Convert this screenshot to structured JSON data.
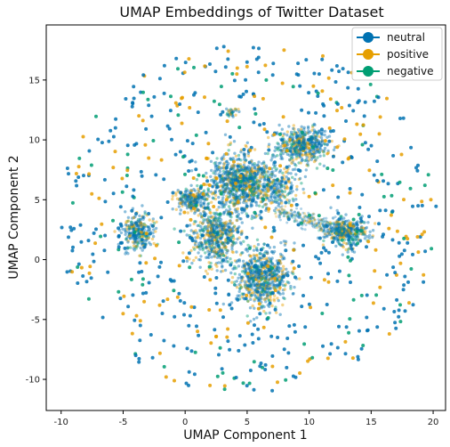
{
  "chart_data": {
    "type": "scatter",
    "title": "UMAP Embeddings of Twitter Dataset",
    "xlabel": "UMAP Component 1",
    "ylabel": "UMAP Component 2",
    "xlim": [
      -11.2,
      21.0
    ],
    "ylim": [
      -12.6,
      19.6
    ],
    "xticks": [
      -10,
      -5,
      0,
      5,
      10,
      15,
      20
    ],
    "yticks": [
      -10,
      -5,
      0,
      5,
      10,
      15
    ],
    "grid": false,
    "legend_position": "top-right",
    "series": [
      {
        "name": "neutral",
        "color": "#0072b2"
      },
      {
        "name": "positive",
        "color": "#e69f00"
      },
      {
        "name": "negative",
        "color": "#009e73"
      }
    ],
    "clusters": [
      {
        "cx": 4.5,
        "cy": 6.5,
        "sx": 1.7,
        "sy": 1.5,
        "weight": 0.16
      },
      {
        "cx": 6.2,
        "cy": -1.5,
        "sx": 1.4,
        "sy": 1.6,
        "weight": 0.13
      },
      {
        "cx": 2.5,
        "cy": 2.0,
        "sx": 1.4,
        "sy": 1.6,
        "weight": 0.11
      },
      {
        "cx": 9.5,
        "cy": 9.5,
        "sx": 1.3,
        "sy": 1.0,
        "weight": 0.09
      },
      {
        "cx": 13.0,
        "cy": 2.3,
        "sx": 1.1,
        "sy": 0.8,
        "weight": 0.07
      },
      {
        "cx": -3.8,
        "cy": 2.3,
        "sx": 0.8,
        "sy": 0.9,
        "weight": 0.05
      },
      {
        "cx": 0.5,
        "cy": 5.0,
        "sx": 0.9,
        "sy": 0.6,
        "weight": 0.04
      },
      {
        "cx": 7.5,
        "cy": 6.0,
        "sx": 1.0,
        "sy": 1.2,
        "weight": 0.04
      },
      {
        "cx": 3.8,
        "cy": 12.3,
        "sx": 0.3,
        "sy": 0.3,
        "weight": 0.006
      }
    ]
  }
}
